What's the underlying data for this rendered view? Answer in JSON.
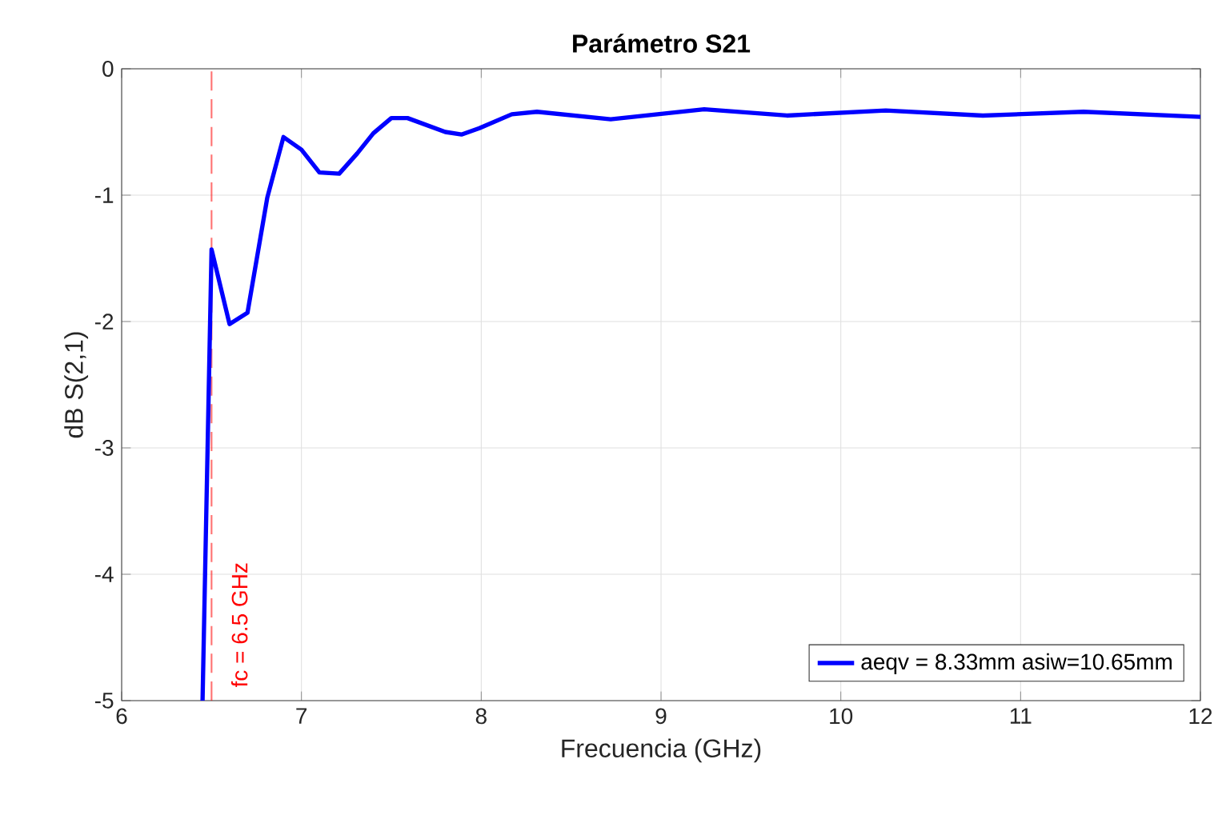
{
  "chart_data": {
    "type": "line",
    "title": "**Parámetro S21**",
    "xlabel": "Frecuencia (GHz)",
    "ylabel": "dB S(2,1)",
    "x": [
      6.45,
      6.5,
      6.6,
      6.7,
      6.81,
      6.9,
      7.0,
      7.1,
      7.21,
      7.31,
      7.4,
      7.5,
      7.59,
      7.8,
      7.89,
      7.99,
      8.17,
      8.31,
      8.72,
      9.24,
      9.7,
      10.25,
      10.79,
      11.35,
      12
    ],
    "series": [
      {
        "name": "aeqv = 8.33mm  asiw=10.65mm",
        "color": "#0000ff",
        "values": [
          -5,
          -1.43,
          -2.02,
          -1.93,
          -1.02,
          -0.54,
          -0.64,
          -0.82,
          -0.83,
          -0.67,
          -0.51,
          -0.39,
          -0.39,
          -0.5,
          -0.52,
          -0.47,
          -0.36,
          -0.34,
          -0.4,
          -0.32,
          -0.37,
          -0.33,
          -0.37,
          -0.34,
          -0.38
        ]
      }
    ],
    "xlim": [
      6,
      12
    ],
    "ylim": [
      -5,
      0
    ],
    "xticks": [
      6,
      7,
      8,
      9,
      10,
      11,
      12
    ],
    "yticks": [
      -5,
      -4,
      -3,
      -2,
      -1,
      0
    ],
    "grid": true,
    "legend": "bottom right",
    "line_style": "solid",
    "marker": "none",
    "ref_lines": [
      {
        "axis": "x",
        "value": 6.5,
        "label": "fc = 6.5 GHz",
        "color": "#ff0000",
        "line_style": "dashed"
      }
    ]
  }
}
